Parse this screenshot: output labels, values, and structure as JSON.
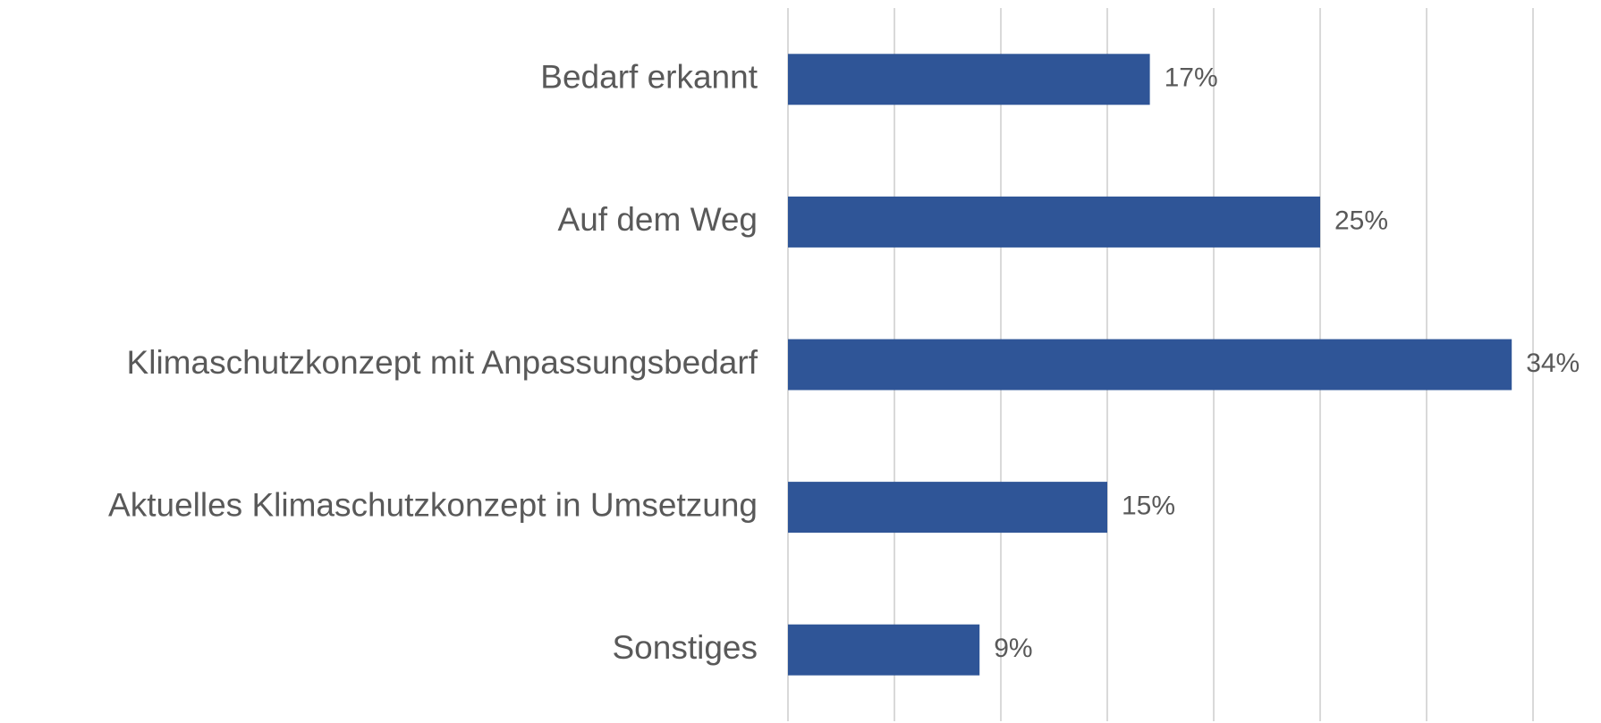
{
  "chart_data": {
    "type": "bar",
    "orientation": "horizontal",
    "categories": [
      "Bedarf erkannt",
      "Auf dem Weg",
      "Klimaschutzkonzept mit Anpassungsbedarf",
      "Aktuelles Klimaschutzkonzept in Umsetzung",
      "Sonstiges"
    ],
    "values": [
      17,
      25,
      34,
      15,
      9
    ],
    "value_labels": [
      "17%",
      "25%",
      "34%",
      "15%",
      "9%"
    ],
    "color": "#2f5597",
    "xlim": [
      0,
      35
    ],
    "xticks": [
      0,
      5,
      10,
      15,
      20,
      25,
      30,
      35
    ],
    "grid": true
  }
}
